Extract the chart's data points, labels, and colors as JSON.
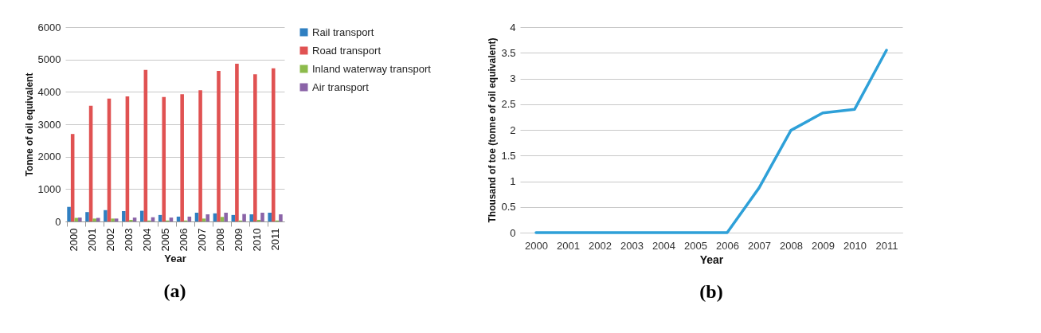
{
  "chart_data": [
    {
      "type": "bar",
      "xlabel": "Year",
      "ylabel": "Tonne of oil equivalent",
      "categories": [
        "2000",
        "2001",
        "2002",
        "2003",
        "2004",
        "2005",
        "2006",
        "2007",
        "2008",
        "2009",
        "2010",
        "2011"
      ],
      "series": [
        {
          "name": "Rail transport",
          "color": "#2f7fc1",
          "values": [
            450,
            290,
            350,
            320,
            330,
            200,
            150,
            270,
            250,
            200,
            220,
            270
          ]
        },
        {
          "name": "Road transport",
          "color": "#e05252",
          "values": [
            2700,
            3570,
            3790,
            3860,
            4680,
            3840,
            3930,
            4050,
            4650,
            4870,
            4540,
            4730
          ]
        },
        {
          "name": "Inland waterway transport",
          "color": "#8dbb4c",
          "values": [
            110,
            90,
            90,
            50,
            30,
            30,
            30,
            90,
            140,
            30,
            50,
            30
          ]
        },
        {
          "name": "Air transport",
          "color": "#8b64a8",
          "values": [
            120,
            110,
            90,
            120,
            130,
            120,
            150,
            220,
            270,
            230,
            270,
            220
          ]
        }
      ],
      "ylim": [
        0,
        6000
      ],
      "yticks": [
        0,
        1000,
        2000,
        3000,
        4000,
        5000,
        6000
      ],
      "grid": "y",
      "legend": "right",
      "annotations": [
        "(a)"
      ]
    },
    {
      "type": "line",
      "xlabel": "Year",
      "ylabel": "Thousand of toe (tonne of oil equivalent)",
      "categories": [
        "2000",
        "2001",
        "2002",
        "2003",
        "2004",
        "2005",
        "2006",
        "2007",
        "2008",
        "2009",
        "2010",
        "2011"
      ],
      "series": [
        {
          "color": "#2ea0d8",
          "values": [
            0,
            0,
            0,
            0,
            0,
            0,
            0,
            0.87,
            1.99,
            2.33,
            2.4,
            3.55
          ]
        }
      ],
      "ylim": [
        0,
        4
      ],
      "yticks": [
        0,
        0.5,
        1,
        1.5,
        2,
        2.5,
        3,
        3.5,
        4
      ],
      "grid": "y",
      "annotations": [
        "(b)"
      ]
    }
  ]
}
